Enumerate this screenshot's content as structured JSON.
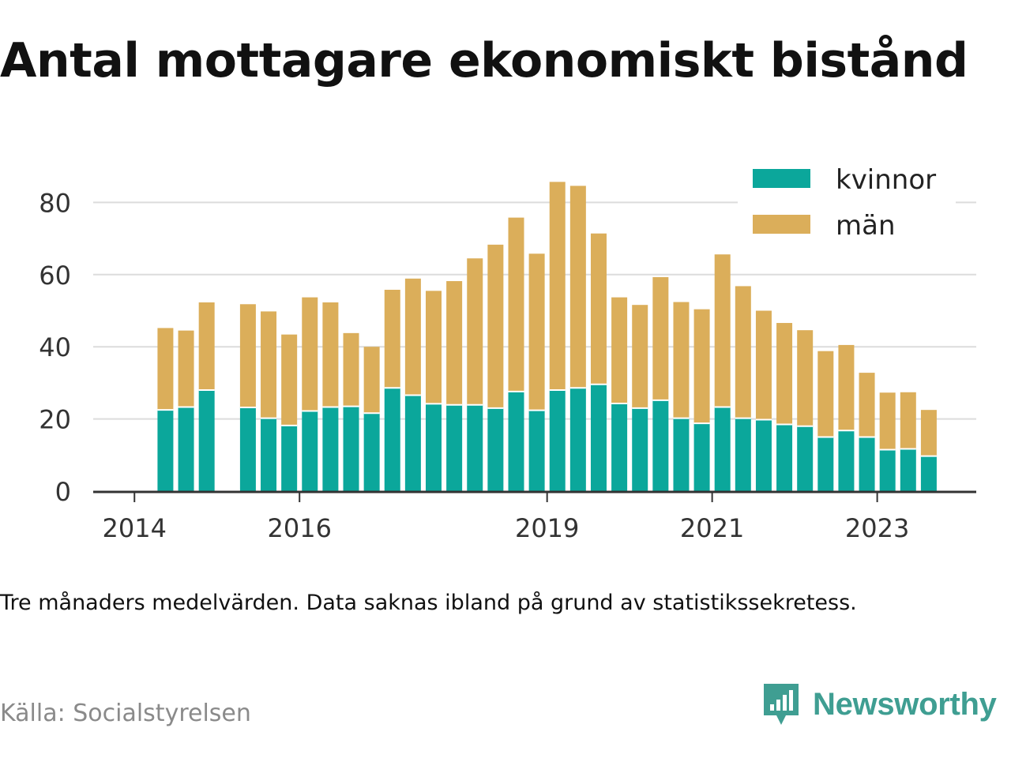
{
  "title": "Antal mottagare ekonomiskt bistånd",
  "note": "Tre månaders medelvärden. Data saknas ibland på grund av statistikssekretess.",
  "source": "Källa: Socialstyrelsen",
  "brand": {
    "name": "Newsworthy",
    "icon": "newsworthy-logo-icon",
    "color": "#3f9e92"
  },
  "colors": {
    "kvinnor": "#0ba79b",
    "man": "#dbae5a",
    "grid": "#dcdcdc",
    "axis": "#333333"
  },
  "chart_data": {
    "type": "bar",
    "stacked": true,
    "title": "Antal mottagare ekonomiskt bistånd",
    "x_ticks": [
      {
        "label": "2014",
        "x": 2014.0
      },
      {
        "label": "2016",
        "x": 2016.0
      },
      {
        "label": "2019",
        "x": 2019.0
      },
      {
        "label": "2021",
        "x": 2021.0
      },
      {
        "label": "2023",
        "x": 2023.0
      }
    ],
    "xlim": [
      2013.5,
      2024.2
    ],
    "y_ticks": [
      0,
      20,
      40,
      60,
      80
    ],
    "ylim": [
      0,
      90
    ],
    "grid": true,
    "legend": "top-right",
    "x": [
      2014.375,
      2014.625,
      2014.875,
      2015.375,
      2015.625,
      2015.875,
      2016.125,
      2016.375,
      2016.625,
      2016.875,
      2017.125,
      2017.375,
      2017.625,
      2017.875,
      2018.125,
      2018.375,
      2018.625,
      2018.875,
      2019.125,
      2019.375,
      2019.625,
      2019.875,
      2020.125,
      2020.375,
      2020.625,
      2020.875,
      2021.125,
      2021.375,
      2021.625,
      2021.875,
      2022.125,
      2022.375,
      2022.625,
      2022.875,
      2023.125,
      2023.375,
      2023.625
    ],
    "series": [
      {
        "name": "kvinnor",
        "values": [
          22.5,
          23.3,
          28.0,
          23.2,
          20.2,
          18.2,
          22.2,
          23.3,
          23.5,
          21.6,
          28.6,
          26.6,
          24.2,
          23.9,
          23.9,
          23.0,
          27.6,
          22.4,
          28.0,
          28.6,
          29.6,
          24.3,
          23.0,
          25.2,
          20.2,
          18.8,
          23.3,
          20.2,
          19.8,
          18.5,
          18.0,
          15.0,
          16.8,
          15.0,
          11.5,
          11.7,
          9.7
        ]
      },
      {
        "name": "män",
        "values": [
          22.7,
          21.2,
          24.3,
          28.6,
          29.6,
          25.2,
          31.5,
          29.0,
          20.3,
          18.4,
          27.2,
          32.3,
          31.3,
          34.3,
          40.6,
          45.3,
          48.2,
          43.4,
          57.7,
          56.0,
          41.8,
          29.4,
          28.6,
          34.1,
          32.2,
          31.6,
          42.3,
          36.6,
          30.2,
          28.1,
          26.6,
          23.8,
          23.7,
          17.8,
          15.8,
          15.7,
          12.8
        ]
      }
    ]
  }
}
